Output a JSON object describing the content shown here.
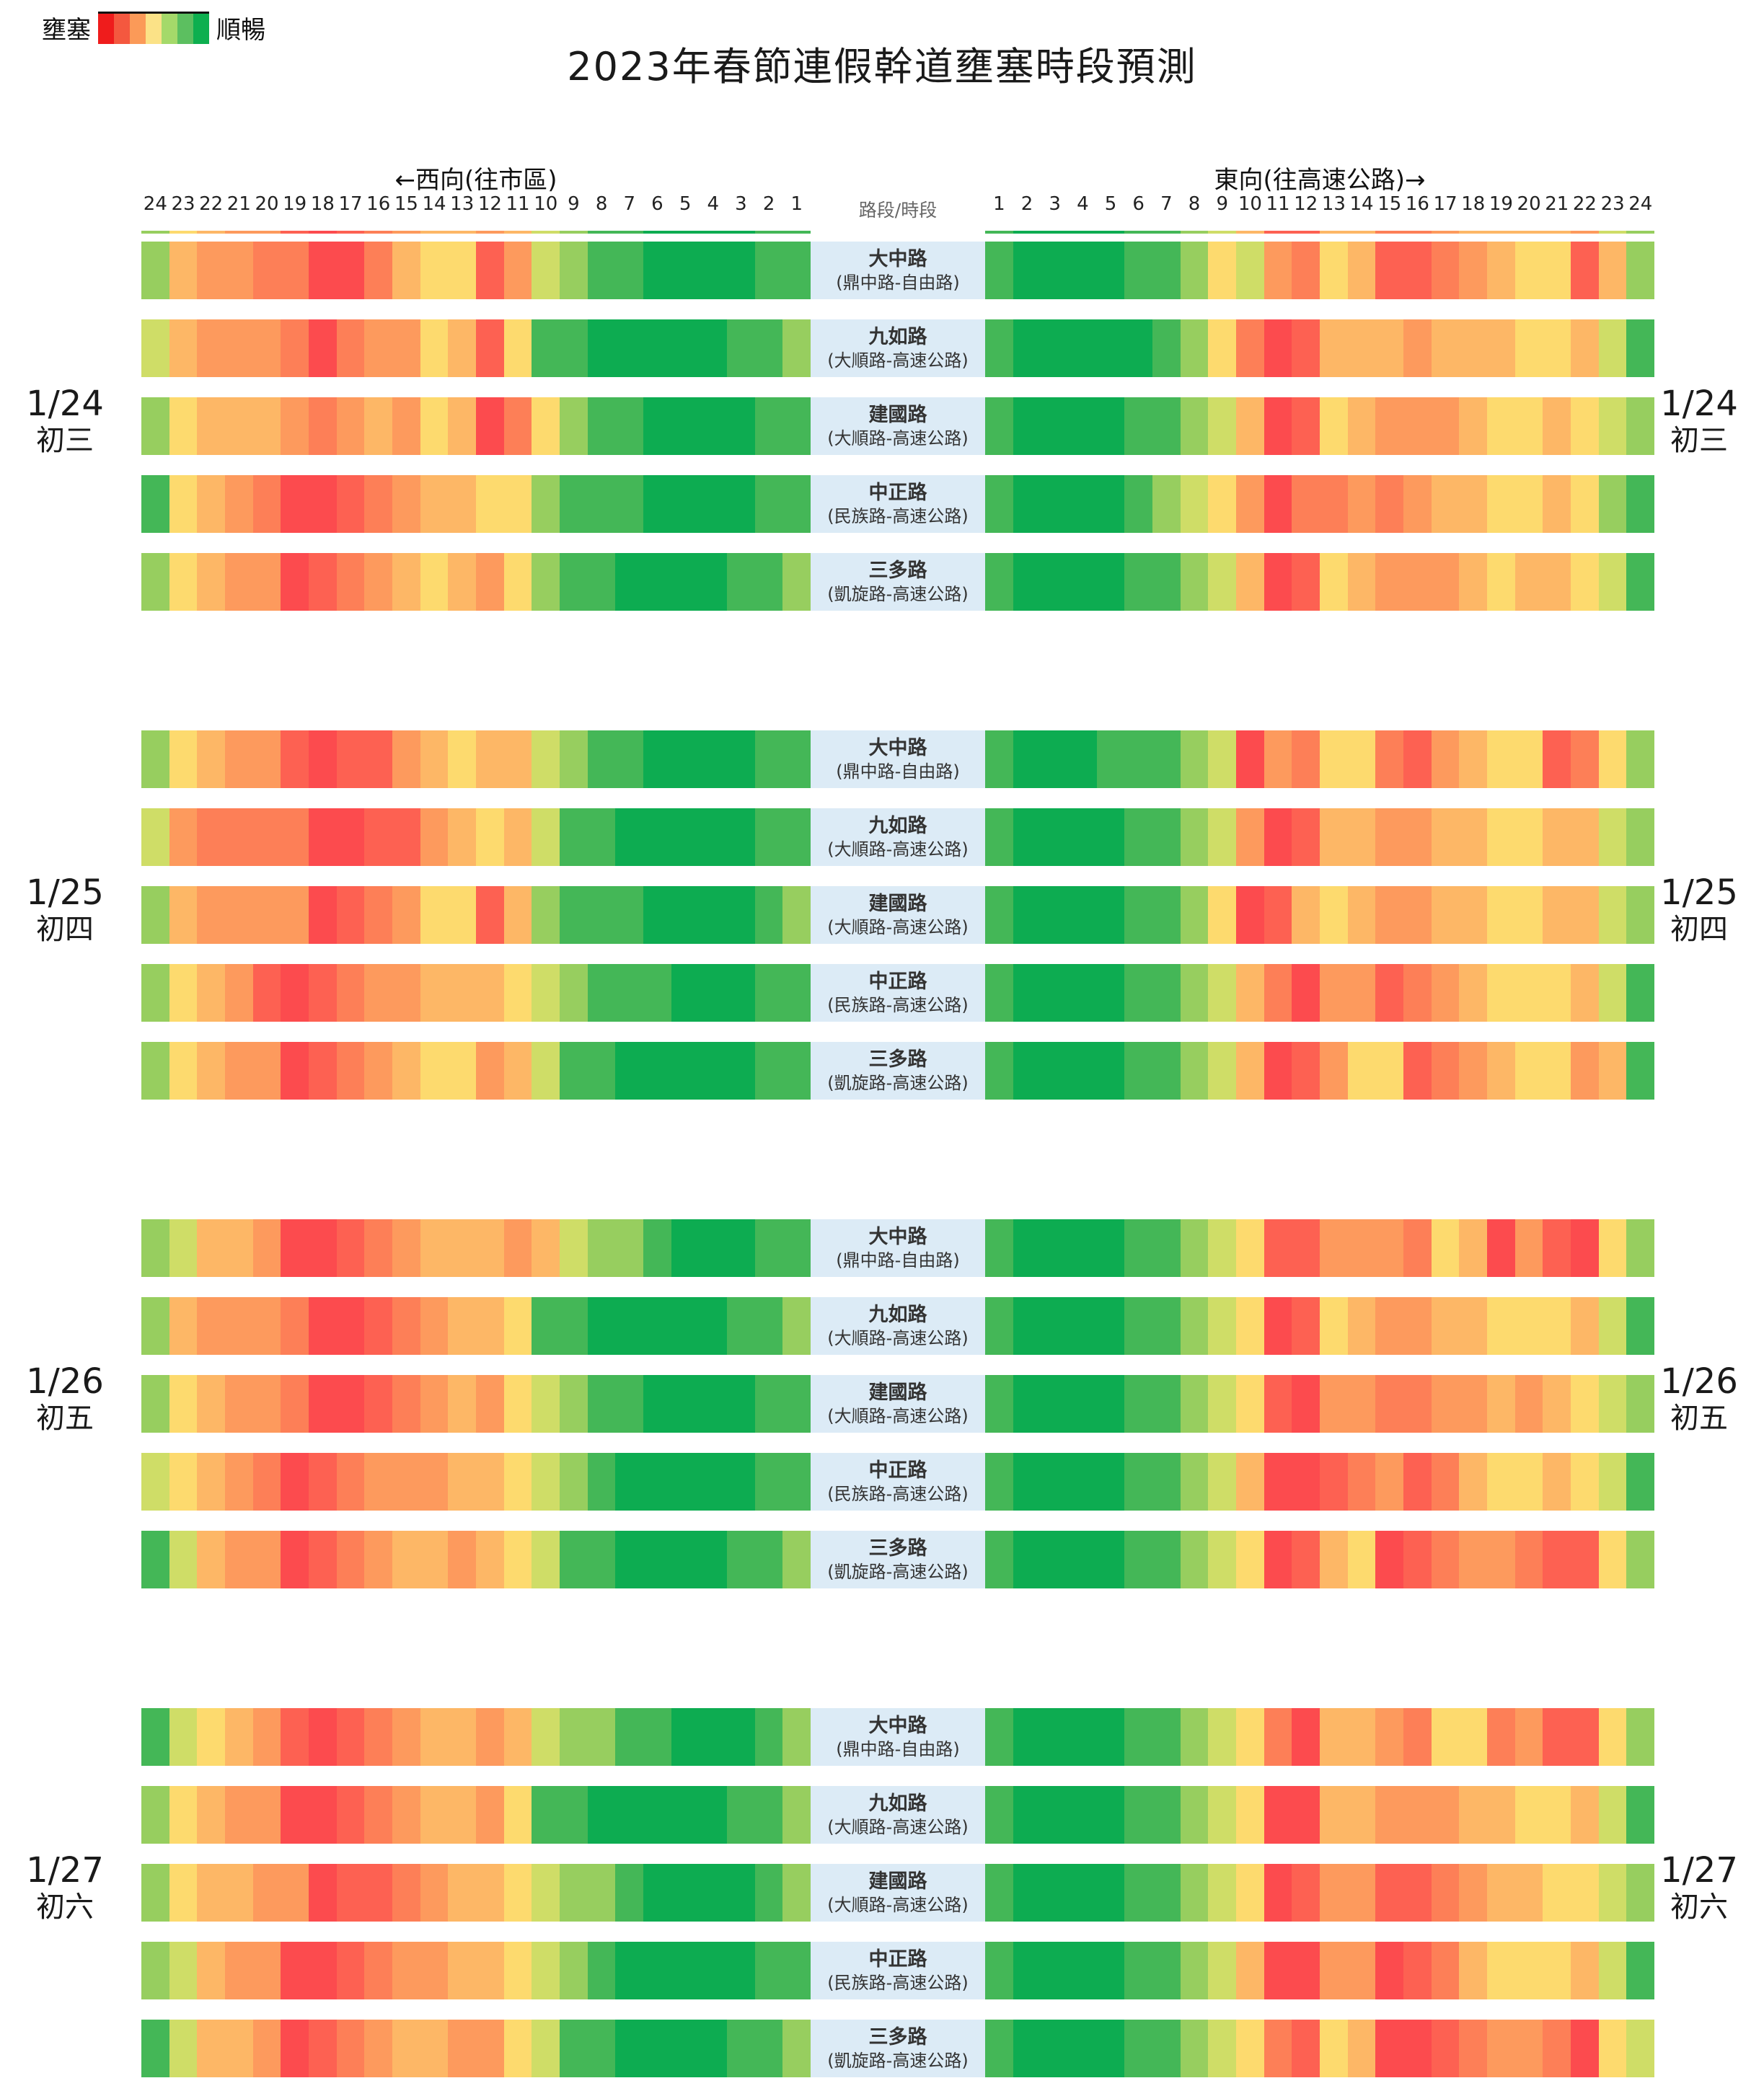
{
  "chart_data": {
    "type": "heatmap",
    "title": "2023年春節連假幹道壅塞時段預測",
    "legend": {
      "left": "壅塞",
      "right": "順暢",
      "colors": [
        "#ef1c1c",
        "#f4583f",
        "#fb9a58",
        "#fbe287",
        "#a5d96a",
        "#5cbf60",
        "#0daf4f"
      ]
    },
    "direction_west": "←西向(往市區)",
    "direction_east": "東向(往高速公路)→",
    "center_header": "路段/時段",
    "hours_west": [
      24,
      23,
      22,
      21,
      20,
      19,
      18,
      17,
      16,
      15,
      14,
      13,
      12,
      11,
      10,
      9,
      8,
      7,
      6,
      5,
      4,
      3,
      2,
      1
    ],
    "hours_east": [
      1,
      2,
      3,
      4,
      5,
      6,
      7,
      8,
      9,
      10,
      11,
      12,
      13,
      14,
      15,
      16,
      17,
      18,
      19,
      20,
      21,
      22,
      23,
      24
    ],
    "levels_note": "0=壅塞(紅) 到 9=順暢(綠)",
    "palette": [
      "#fc4b4e",
      "#fd6152",
      "#fd7f57",
      "#fd9a5d",
      "#fdb766",
      "#fdda6e",
      "#cfdd67",
      "#97ce5f",
      "#44b757",
      "#0dac51"
    ],
    "roads": [
      {
        "name": "大中路",
        "segment": "(鼎中路-自由路)"
      },
      {
        "name": "九如路",
        "segment": "(大順路-高速公路)"
      },
      {
        "name": "建國路",
        "segment": "(大順路-高速公路)"
      },
      {
        "name": "中正路",
        "segment": "(民族路-高速公路)"
      },
      {
        "name": "三多路",
        "segment": "(凱旋路-高速公路)"
      }
    ],
    "days": [
      {
        "date": "1/24",
        "lunar": "初三",
        "west": [
          [
            7,
            4,
            3,
            3,
            2,
            2,
            0,
            0,
            2,
            4,
            5,
            5,
            1,
            3,
            6,
            7,
            8,
            8,
            9,
            9,
            9,
            9,
            8,
            8
          ],
          [
            6,
            4,
            3,
            3,
            3,
            2,
            0,
            2,
            3,
            3,
            5,
            4,
            1,
            5,
            8,
            8,
            9,
            9,
            9,
            9,
            9,
            8,
            8,
            7
          ],
          [
            7,
            5,
            4,
            4,
            4,
            3,
            2,
            3,
            4,
            3,
            5,
            4,
            0,
            2,
            5,
            7,
            8,
            8,
            9,
            9,
            9,
            9,
            8,
            8
          ],
          [
            8,
            5,
            4,
            3,
            2,
            0,
            0,
            1,
            2,
            3,
            4,
            4,
            5,
            5,
            7,
            8,
            8,
            8,
            9,
            9,
            9,
            9,
            8,
            8
          ],
          [
            7,
            5,
            4,
            3,
            3,
            0,
            1,
            2,
            3,
            4,
            5,
            4,
            3,
            5,
            7,
            8,
            8,
            9,
            9,
            9,
            9,
            8,
            8,
            7
          ]
        ],
        "east": [
          [
            8,
            9,
            9,
            9,
            9,
            8,
            8,
            7,
            5,
            6,
            3,
            2,
            5,
            4,
            1,
            1,
            2,
            3,
            4,
            5,
            5,
            1,
            4,
            7
          ],
          [
            8,
            9,
            9,
            9,
            9,
            9,
            8,
            7,
            5,
            2,
            0,
            1,
            4,
            4,
            4,
            3,
            4,
            4,
            4,
            5,
            5,
            4,
            6,
            8
          ],
          [
            8,
            9,
            9,
            9,
            9,
            8,
            8,
            7,
            6,
            4,
            0,
            1,
            5,
            4,
            3,
            3,
            3,
            4,
            5,
            5,
            4,
            5,
            6,
            7
          ],
          [
            8,
            9,
            9,
            9,
            9,
            8,
            7,
            6,
            5,
            3,
            0,
            2,
            2,
            3,
            2,
            3,
            4,
            4,
            5,
            5,
            4,
            5,
            7,
            8
          ],
          [
            8,
            9,
            9,
            9,
            9,
            8,
            8,
            7,
            6,
            4,
            0,
            1,
            5,
            4,
            3,
            3,
            3,
            4,
            5,
            4,
            4,
            5,
            6,
            8
          ]
        ]
      },
      {
        "date": "1/25",
        "lunar": "初四",
        "west": [
          [
            7,
            5,
            4,
            3,
            3,
            1,
            0,
            1,
            1,
            3,
            4,
            5,
            4,
            4,
            6,
            7,
            8,
            8,
            9,
            9,
            9,
            9,
            8,
            8
          ],
          [
            6,
            3,
            2,
            2,
            2,
            2,
            0,
            0,
            1,
            1,
            3,
            4,
            5,
            4,
            6,
            8,
            8,
            9,
            9,
            9,
            9,
            9,
            8,
            8
          ],
          [
            7,
            4,
            3,
            3,
            3,
            3,
            0,
            1,
            2,
            3,
            5,
            5,
            1,
            4,
            7,
            8,
            8,
            8,
            9,
            9,
            9,
            9,
            8,
            7
          ],
          [
            7,
            5,
            4,
            3,
            1,
            0,
            1,
            2,
            3,
            3,
            4,
            4,
            4,
            5,
            6,
            7,
            8,
            8,
            8,
            9,
            9,
            9,
            8,
            8
          ],
          [
            7,
            5,
            4,
            3,
            3,
            0,
            1,
            2,
            3,
            4,
            5,
            5,
            3,
            4,
            6,
            8,
            8,
            9,
            9,
            9,
            9,
            9,
            8,
            8
          ]
        ],
        "east": [
          [
            8,
            9,
            9,
            9,
            8,
            8,
            8,
            7,
            6,
            0,
            3,
            2,
            5,
            5,
            2,
            1,
            3,
            4,
            5,
            5,
            1,
            2,
            5,
            7
          ],
          [
            8,
            9,
            9,
            9,
            9,
            8,
            8,
            7,
            6,
            3,
            0,
            1,
            4,
            4,
            3,
            3,
            4,
            4,
            5,
            5,
            4,
            4,
            6,
            7
          ],
          [
            8,
            9,
            9,
            9,
            9,
            8,
            8,
            7,
            5,
            0,
            1,
            4,
            5,
            4,
            3,
            3,
            4,
            4,
            5,
            5,
            4,
            4,
            6,
            7
          ],
          [
            8,
            9,
            9,
            9,
            9,
            8,
            8,
            7,
            6,
            4,
            2,
            0,
            3,
            3,
            1,
            2,
            3,
            4,
            5,
            5,
            5,
            4,
            6,
            8
          ],
          [
            8,
            9,
            9,
            9,
            9,
            8,
            8,
            7,
            6,
            4,
            0,
            1,
            3,
            5,
            5,
            1,
            2,
            3,
            4,
            5,
            5,
            3,
            4,
            8
          ]
        ]
      },
      {
        "date": "1/26",
        "lunar": "初五",
        "west": [
          [
            7,
            6,
            4,
            4,
            3,
            0,
            0,
            1,
            2,
            3,
            4,
            4,
            4,
            3,
            4,
            6,
            7,
            7,
            8,
            9,
            9,
            9,
            8,
            8
          ],
          [
            7,
            4,
            3,
            3,
            3,
            2,
            0,
            0,
            1,
            2,
            3,
            4,
            4,
            5,
            8,
            8,
            9,
            9,
            9,
            9,
            9,
            8,
            8,
            7
          ],
          [
            7,
            5,
            4,
            3,
            3,
            2,
            0,
            0,
            1,
            2,
            3,
            4,
            3,
            5,
            6,
            7,
            8,
            8,
            9,
            9,
            9,
            9,
            8,
            8
          ],
          [
            6,
            5,
            4,
            3,
            2,
            0,
            1,
            2,
            3,
            3,
            3,
            4,
            4,
            5,
            6,
            7,
            8,
            9,
            9,
            9,
            9,
            9,
            8,
            8
          ],
          [
            8,
            6,
            4,
            3,
            3,
            0,
            1,
            2,
            3,
            4,
            4,
            3,
            4,
            5,
            6,
            8,
            8,
            9,
            9,
            9,
            9,
            8,
            8,
            7
          ]
        ],
        "east": [
          [
            8,
            9,
            9,
            9,
            9,
            8,
            8,
            7,
            6,
            5,
            1,
            1,
            3,
            3,
            3,
            2,
            5,
            4,
            0,
            3,
            1,
            0,
            5,
            7
          ],
          [
            8,
            9,
            9,
            9,
            9,
            8,
            8,
            7,
            6,
            5,
            0,
            1,
            5,
            4,
            3,
            3,
            4,
            4,
            5,
            5,
            5,
            4,
            6,
            8
          ],
          [
            8,
            9,
            9,
            9,
            9,
            8,
            8,
            7,
            6,
            5,
            1,
            0,
            3,
            3,
            2,
            2,
            3,
            3,
            4,
            3,
            4,
            5,
            6,
            7
          ],
          [
            8,
            9,
            9,
            9,
            9,
            8,
            8,
            7,
            6,
            4,
            0,
            0,
            1,
            2,
            3,
            1,
            2,
            4,
            5,
            5,
            4,
            5,
            6,
            8
          ],
          [
            8,
            9,
            9,
            9,
            9,
            8,
            8,
            7,
            6,
            5,
            0,
            1,
            4,
            5,
            0,
            1,
            2,
            3,
            3,
            2,
            1,
            1,
            5,
            7
          ]
        ]
      },
      {
        "date": "1/27",
        "lunar": "初六",
        "west": [
          [
            8,
            6,
            5,
            4,
            3,
            1,
            0,
            1,
            2,
            3,
            4,
            4,
            3,
            4,
            6,
            7,
            7,
            8,
            8,
            9,
            9,
            9,
            8,
            7
          ],
          [
            7,
            5,
            4,
            3,
            3,
            0,
            0,
            1,
            2,
            3,
            4,
            4,
            3,
            5,
            8,
            8,
            9,
            9,
            9,
            9,
            9,
            8,
            8,
            7
          ],
          [
            7,
            5,
            4,
            4,
            3,
            3,
            0,
            1,
            1,
            2,
            3,
            4,
            4,
            5,
            6,
            7,
            7,
            8,
            9,
            9,
            9,
            9,
            8,
            7
          ],
          [
            7,
            6,
            4,
            3,
            3,
            0,
            0,
            1,
            2,
            3,
            3,
            4,
            4,
            5,
            6,
            7,
            8,
            9,
            9,
            9,
            9,
            9,
            8,
            8
          ],
          [
            8,
            6,
            4,
            4,
            3,
            0,
            1,
            2,
            3,
            4,
            4,
            3,
            3,
            5,
            6,
            8,
            8,
            9,
            9,
            9,
            9,
            8,
            8,
            7
          ]
        ],
        "east": [
          [
            8,
            9,
            9,
            9,
            9,
            8,
            8,
            7,
            6,
            5,
            2,
            0,
            4,
            4,
            3,
            2,
            5,
            5,
            2,
            3,
            1,
            1,
            5,
            7
          ],
          [
            8,
            9,
            9,
            9,
            9,
            8,
            8,
            7,
            6,
            5,
            0,
            0,
            4,
            4,
            3,
            3,
            3,
            4,
            4,
            5,
            5,
            4,
            6,
            8
          ],
          [
            8,
            9,
            9,
            9,
            9,
            8,
            8,
            7,
            6,
            5,
            0,
            1,
            3,
            3,
            1,
            1,
            2,
            3,
            4,
            4,
            5,
            5,
            6,
            7
          ],
          [
            8,
            9,
            9,
            9,
            9,
            8,
            8,
            7,
            6,
            4,
            0,
            0,
            3,
            3,
            0,
            1,
            2,
            4,
            5,
            5,
            5,
            4,
            6,
            8
          ],
          [
            8,
            9,
            9,
            9,
            9,
            8,
            8,
            7,
            6,
            5,
            2,
            1,
            5,
            4,
            0,
            0,
            1,
            2,
            3,
            3,
            2,
            0,
            5,
            6
          ]
        ]
      }
    ]
  }
}
